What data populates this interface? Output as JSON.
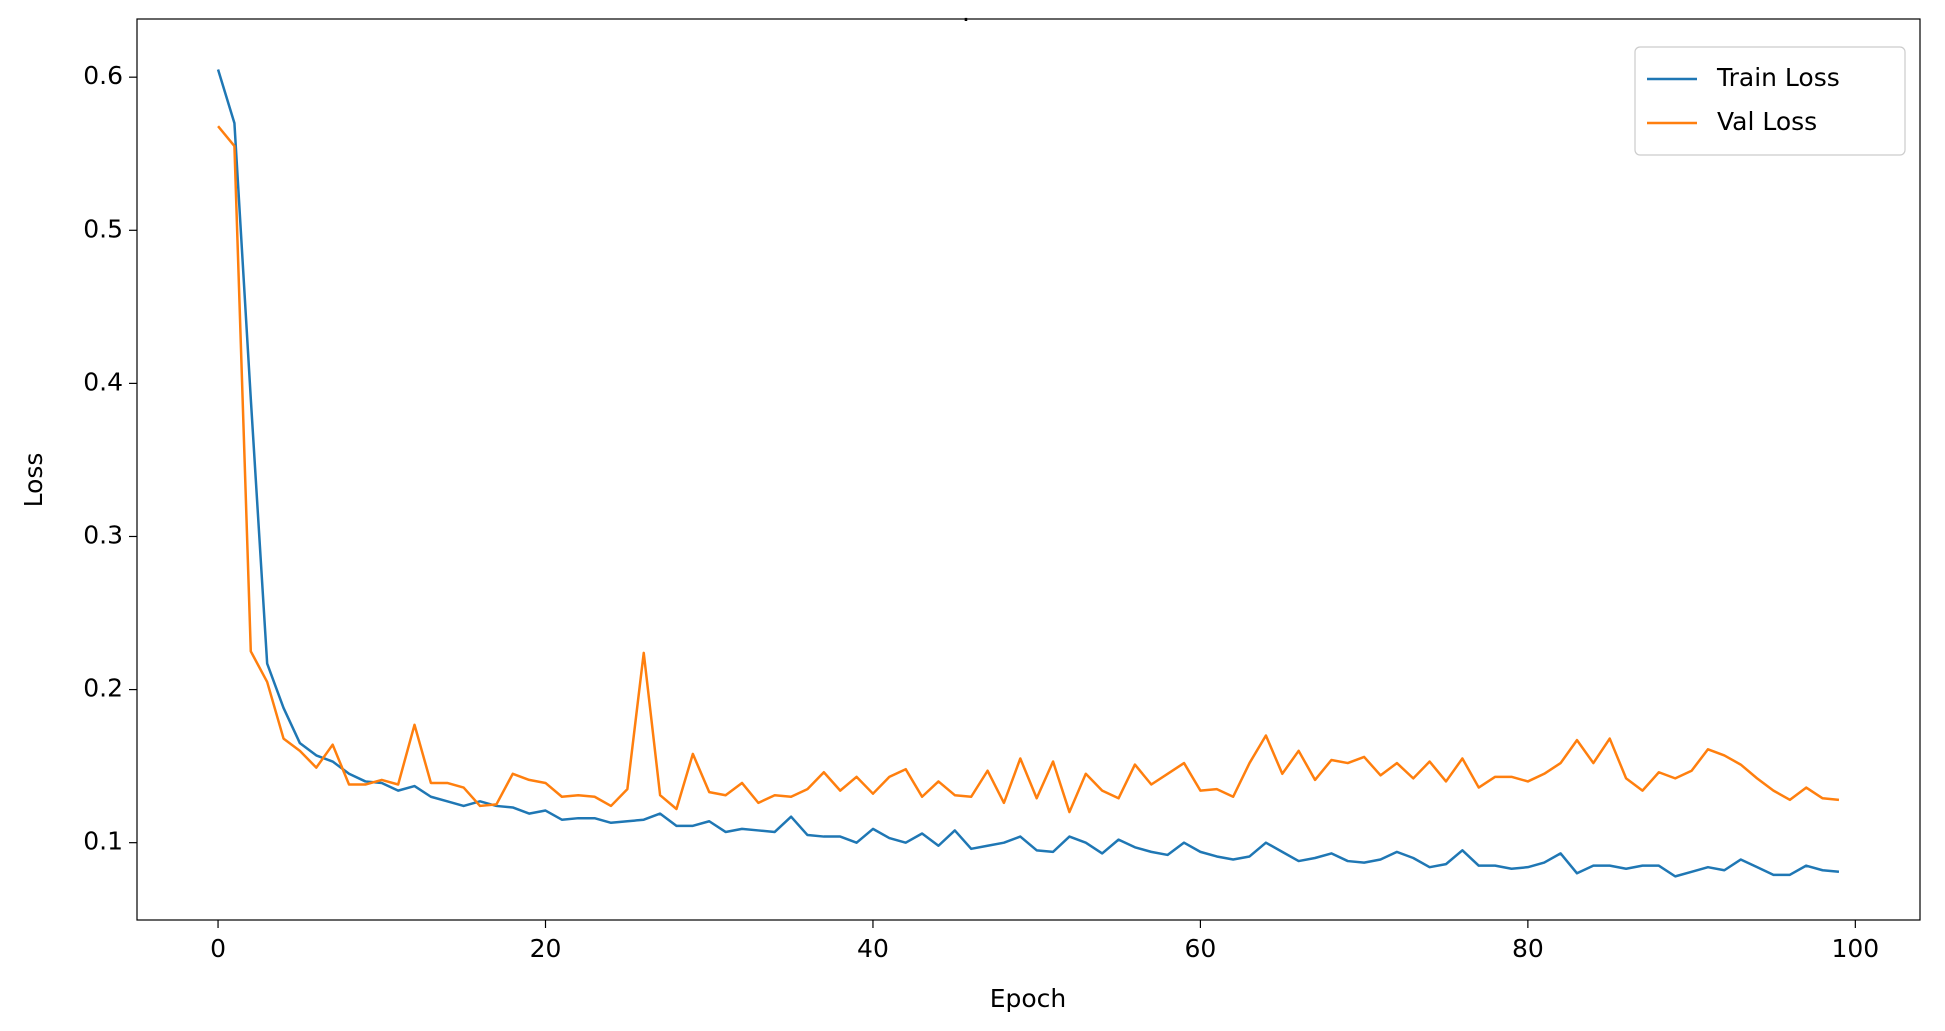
{
  "chart_data": {
    "type": "line",
    "title": ".",
    "xlabel": "Epoch",
    "ylabel": "Loss",
    "x": [
      0,
      1,
      2,
      3,
      4,
      5,
      6,
      7,
      8,
      9,
      10,
      11,
      12,
      13,
      14,
      15,
      16,
      17,
      18,
      19,
      20,
      21,
      22,
      23,
      24,
      25,
      26,
      27,
      28,
      29,
      30,
      31,
      32,
      33,
      34,
      35,
      36,
      37,
      38,
      39,
      40,
      41,
      42,
      43,
      44,
      45,
      46,
      47,
      48,
      49,
      50,
      51,
      52,
      53,
      54,
      55,
      56,
      57,
      58,
      59,
      60,
      61,
      62,
      63,
      64,
      65,
      66,
      67,
      68,
      69,
      70,
      71,
      72,
      73,
      74,
      75,
      76,
      77,
      78,
      79,
      80,
      81,
      82,
      83,
      84,
      85,
      86,
      87,
      88,
      89,
      90,
      91,
      92,
      93,
      94,
      95,
      96,
      97,
      98,
      99
    ],
    "series": [
      {
        "name": "Train Loss",
        "color": "#1f77b4",
        "values": [
          0.605,
          0.57,
          0.39,
          0.217,
          0.188,
          0.165,
          0.157,
          0.153,
          0.145,
          0.14,
          0.139,
          0.134,
          0.137,
          0.13,
          0.127,
          0.124,
          0.127,
          0.124,
          0.123,
          0.119,
          0.121,
          0.115,
          0.116,
          0.116,
          0.113,
          0.114,
          0.115,
          0.119,
          0.111,
          0.111,
          0.114,
          0.107,
          0.109,
          0.108,
          0.107,
          0.117,
          0.105,
          0.104,
          0.104,
          0.1,
          0.109,
          0.103,
          0.1,
          0.106,
          0.098,
          0.108,
          0.096,
          0.098,
          0.1,
          0.104,
          0.095,
          0.094,
          0.104,
          0.1,
          0.093,
          0.102,
          0.097,
          0.094,
          0.092,
          0.1,
          0.094,
          0.091,
          0.089,
          0.091,
          0.1,
          0.094,
          0.088,
          0.09,
          0.093,
          0.088,
          0.087,
          0.089,
          0.094,
          0.09,
          0.084,
          0.086,
          0.095,
          0.085,
          0.085,
          0.083,
          0.084,
          0.087,
          0.093,
          0.08,
          0.085,
          0.085,
          0.083,
          0.085,
          0.085,
          0.078,
          0.081,
          0.084,
          0.082,
          0.089,
          0.084,
          0.079,
          0.079,
          0.085,
          0.082,
          0.081
        ]
      },
      {
        "name": "Val Loss",
        "color": "#ff7f0e",
        "values": [
          0.568,
          0.555,
          0.225,
          0.205,
          0.168,
          0.16,
          0.149,
          0.164,
          0.138,
          0.138,
          0.141,
          0.138,
          0.177,
          0.139,
          0.139,
          0.136,
          0.124,
          0.125,
          0.145,
          0.141,
          0.139,
          0.13,
          0.131,
          0.13,
          0.124,
          0.135,
          0.224,
          0.131,
          0.122,
          0.158,
          0.133,
          0.131,
          0.139,
          0.126,
          0.131,
          0.13,
          0.135,
          0.146,
          0.134,
          0.143,
          0.132,
          0.143,
          0.148,
          0.13,
          0.14,
          0.131,
          0.13,
          0.147,
          0.126,
          0.155,
          0.129,
          0.153,
          0.12,
          0.145,
          0.134,
          0.129,
          0.151,
          0.138,
          0.145,
          0.152,
          0.134,
          0.135,
          0.13,
          0.152,
          0.17,
          0.145,
          0.16,
          0.141,
          0.154,
          0.152,
          0.156,
          0.144,
          0.152,
          0.142,
          0.153,
          0.14,
          0.155,
          0.136,
          0.143,
          0.143,
          0.14,
          0.145,
          0.152,
          0.167,
          0.152,
          0.168,
          0.142,
          0.134,
          0.146,
          0.142,
          0.147,
          0.161,
          0.157,
          0.151,
          0.142,
          0.134,
          0.128,
          0.136,
          0.129,
          0.128
        ]
      }
    ],
    "xlim": [
      -4.95,
      103.95
    ],
    "ylim": [
      0.0495,
      0.638
    ],
    "xticks": [
      0,
      20,
      40,
      60,
      80,
      100
    ],
    "yticks": [
      0.1,
      0.2,
      0.3,
      0.4,
      0.5,
      0.6
    ],
    "grid": false,
    "legend": "upper right"
  }
}
